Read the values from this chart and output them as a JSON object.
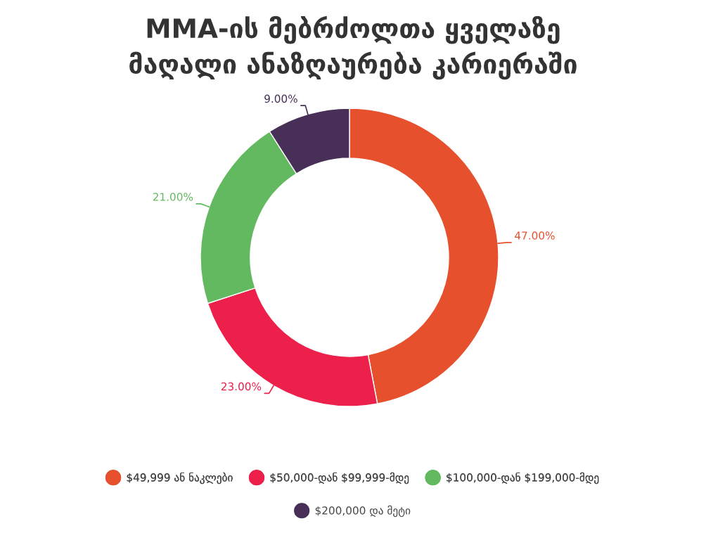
{
  "chart_data": {
    "type": "donut",
    "title": "MMA-ის მებრძოლთა ყველაზე\nმაღალი ანაზღაურება კარიერაში",
    "categories": [
      "$49,999 ან ნაკლები",
      "$50,000-დან $99,999-მდე",
      "$100,000-დან $199,000-მდე",
      "$200,000 და მეტი"
    ],
    "values": [
      47,
      23,
      21,
      9
    ],
    "colors": [
      "#e6502d",
      "#ed1f4b",
      "#62b95f",
      "#472f57"
    ],
    "value_labels": [
      "47.00%",
      "23.00%",
      "21.00%",
      "9.00%"
    ],
    "legend": "bottom"
  }
}
